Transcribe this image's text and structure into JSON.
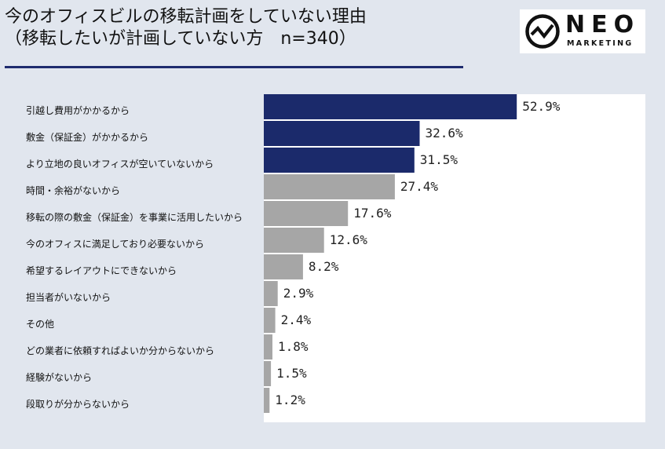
{
  "header": {
    "title_line1": "今のオフィスビルの移転計画をしていない理由",
    "title_line2": "（移転したいが計画していない方　n=340）"
  },
  "logo": {
    "brand": "NEO",
    "sub": "MARKETING",
    "icon": "neo-logo-pulse-icon"
  },
  "colors": {
    "highlight": "#1b2a6b",
    "normal": "#a6a6a6",
    "background": "#e1e6ee",
    "panel": "#ffffff"
  },
  "chart_data": {
    "type": "bar",
    "orientation": "horizontal",
    "title": "",
    "xlabel": "",
    "ylabel": "",
    "xlim": [
      0,
      100
    ],
    "categories": [
      "引越し費用がかかるから",
      "敷金（保証金）がかかるから",
      "より立地の良いオフィスが空いていないから",
      "時間・余裕がないから",
      "移転の際の敷金（保証金）を事業に活用したいから",
      "今のオフィスに満足しており必要ないから",
      "希望するレイアウトにできないから",
      "担当者がいないから",
      "その他",
      "どの業者に依頼すればよいか分からないから",
      "経験がないから",
      "段取りが分からないから"
    ],
    "values": [
      52.9,
      32.6,
      31.5,
      27.4,
      17.6,
      12.6,
      8.2,
      2.9,
      2.4,
      1.8,
      1.5,
      1.2
    ],
    "value_labels": [
      "52.9%",
      "32.6%",
      "31.5%",
      "27.4%",
      "17.6%",
      "12.6%",
      "8.2%",
      "2.9%",
      "2.4%",
      "1.8%",
      "1.5%",
      "1.2%"
    ],
    "highlighted_count": 3
  }
}
